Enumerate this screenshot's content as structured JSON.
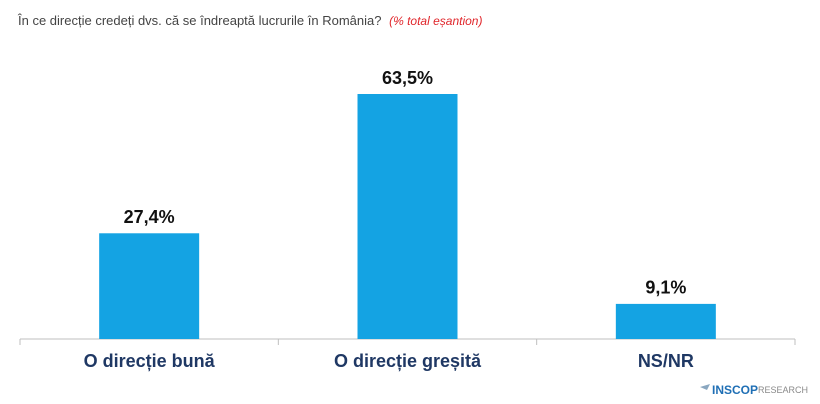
{
  "chart_data": {
    "type": "bar",
    "title": "În ce direcție credeți dvs. că se îndreaptă lucrurile în România?",
    "subtitle": "(% total eșantion)",
    "categories": [
      "O direcție bună",
      "O direcție greșită",
      "NS/NR"
    ],
    "values": [
      27.4,
      63.5,
      9.1
    ],
    "value_labels": [
      "27,4%",
      "63,5%",
      "9,1%"
    ],
    "color": "#14a3e3"
  },
  "logo": {
    "brand": "INSCOP",
    "suffix": "RESEARCH"
  }
}
